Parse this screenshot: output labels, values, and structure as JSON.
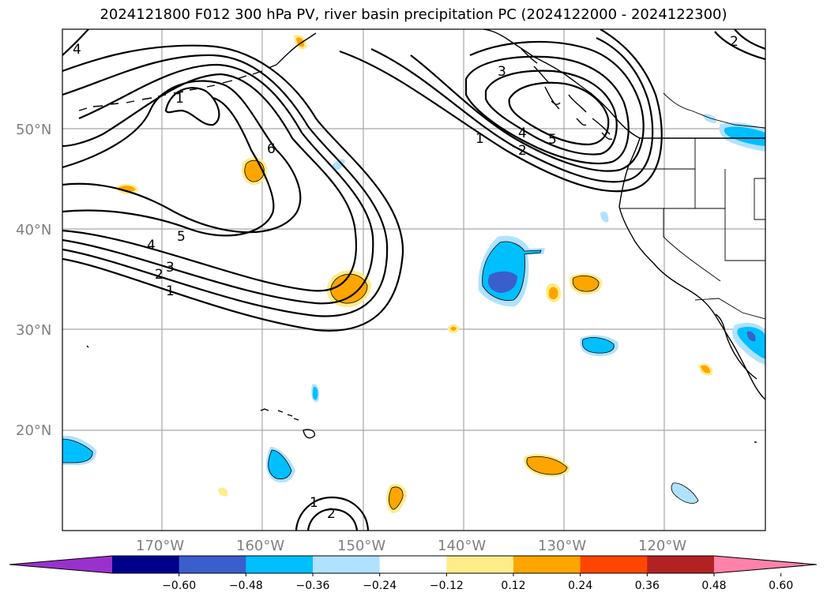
{
  "title": "2024121800 F012 300 hPa PV, river basin precipitation PC (2024122000 - 2024122300)",
  "latitude_labels": [
    "50°N",
    "40°N",
    "30°N",
    "20°N"
  ],
  "longitude_labels": [
    "170°W",
    "160°W",
    "150°W",
    "140°W",
    "130°W",
    "120°W"
  ],
  "pv_contour_labels": [
    "4",
    "1",
    "6",
    "5",
    "4",
    "3",
    "2",
    "1",
    "3",
    "1",
    "2",
    "4",
    "5",
    "1",
    "2",
    "2"
  ],
  "colorbar": {
    "ticks": [
      "−0.60",
      "−0.48",
      "−0.36",
      "−0.24",
      "−0.12",
      "0.12",
      "0.24",
      "0.36",
      "0.48",
      "0.60"
    ],
    "colors": [
      "#9932cc",
      "#00008b",
      "#3a5fcd",
      "#00bfff",
      "#b0e2ff",
      "#ffffff",
      "#ffec8b",
      "#ffa500",
      "#ff4500",
      "#b22222",
      "#ff82ab"
    ]
  },
  "map_extent": {
    "lon": [
      "180°W",
      "110°W"
    ],
    "lat": [
      "10°N",
      "60°N"
    ]
  }
}
